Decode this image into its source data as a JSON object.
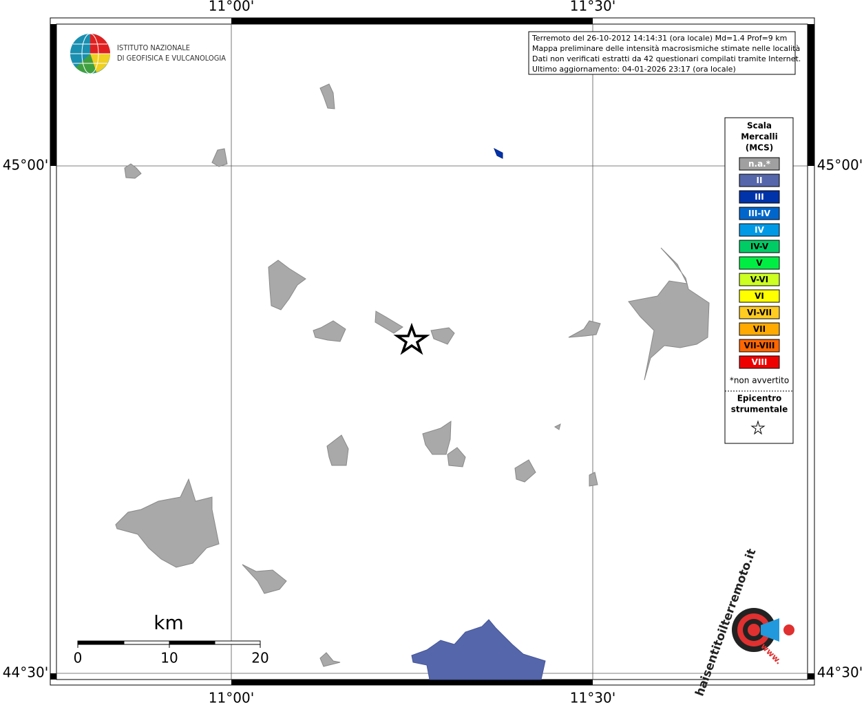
{
  "map": {
    "lon_labels": [
      "11°00'",
      "11°30'"
    ],
    "lat_labels": [
      "45°00'",
      "44°30'"
    ],
    "logo": [
      "ISTITUTO NAZIONALE",
      "DI GEOFISICA E VULCANOLOGIA"
    ],
    "info": [
      "Terremoto del 26-10-2012 14:14:31 (ora locale) Md=1.4 Prof=9 km",
      "Mappa preliminare delle intensità macrosismiche stimate nelle località",
      "Dati non verificati estratti da 42 questionari compilati tramite Internet.",
      "Ultimo aggiornamento: 04-01-2026 23:17 (ora locale)"
    ],
    "legend": {
      "title": [
        "Scala",
        "Mercalli",
        "(MCS)"
      ],
      "classes": [
        {
          "label": "n.a.*",
          "color": "#a0a0a0"
        },
        {
          "label": "II",
          "color": "#5566aa"
        },
        {
          "label": "III",
          "color": "#0033aa"
        },
        {
          "label": "III-IV",
          "color": "#0066cc"
        },
        {
          "label": "IV",
          "color": "#0099e6"
        },
        {
          "label": "IV-V",
          "color": "#00cc66"
        },
        {
          "label": "V",
          "color": "#00ee44"
        },
        {
          "label": "V-VI",
          "color": "#ccff22"
        },
        {
          "label": "VI",
          "color": "#ffff00"
        },
        {
          "label": "VI-VII",
          "color": "#ffcc22"
        },
        {
          "label": "VII",
          "color": "#ffaa00"
        },
        {
          "label": "VII-VIII",
          "color": "#ff6600"
        },
        {
          "label": "VIII",
          "color": "#ee0000"
        }
      ],
      "note": "*non avvertito",
      "epicenter": [
        "Epicentro",
        "strumentale"
      ]
    },
    "scale_bar": {
      "unit": "km",
      "ticks": [
        0,
        10,
        20
      ]
    },
    "site_logo": {
      "text": "haisentitoilterremoto.it",
      "www": "www."
    }
  }
}
